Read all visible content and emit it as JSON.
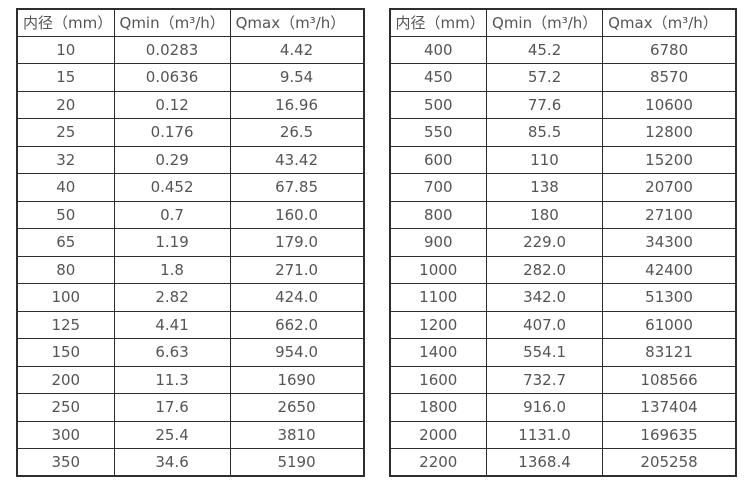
{
  "colors": {
    "background": "#ffffff",
    "text": "#555555",
    "border": "#2e2e2e"
  },
  "table_left": {
    "headers": [
      "内径（mm）",
      "Qmin（m³/h）",
      "Qmax（m³/h）"
    ],
    "rows": [
      [
        "10",
        "0.0283",
        "4.42"
      ],
      [
        "15",
        "0.0636",
        "9.54"
      ],
      [
        "20",
        "0.12",
        "16.96"
      ],
      [
        "25",
        "0.176",
        "26.5"
      ],
      [
        "32",
        "0.29",
        "43.42"
      ],
      [
        "40",
        "0.452",
        "67.85"
      ],
      [
        "50",
        "0.7",
        "160.0"
      ],
      [
        "65",
        "1.19",
        "179.0"
      ],
      [
        "80",
        "1.8",
        "271.0"
      ],
      [
        "100",
        "2.82",
        "424.0"
      ],
      [
        "125",
        "4.41",
        "662.0"
      ],
      [
        "150",
        "6.63",
        "954.0"
      ],
      [
        "200",
        "11.3",
        "1690"
      ],
      [
        "250",
        "17.6",
        "2650"
      ],
      [
        "300",
        "25.4",
        "3810"
      ],
      [
        "350",
        "34.6",
        "5190"
      ]
    ]
  },
  "table_right": {
    "headers": [
      "内径（mm）",
      "Qmin（m³/h）",
      "Qmax（m³/h）"
    ],
    "rows": [
      [
        "400",
        "45.2",
        "6780"
      ],
      [
        "450",
        "57.2",
        "8570"
      ],
      [
        "500",
        "77.6",
        "10600"
      ],
      [
        "550",
        "85.5",
        "12800"
      ],
      [
        "600",
        "110",
        "15200"
      ],
      [
        "700",
        "138",
        "20700"
      ],
      [
        "800",
        "180",
        "27100"
      ],
      [
        "900",
        "229.0",
        "34300"
      ],
      [
        "1000",
        "282.0",
        "42400"
      ],
      [
        "1100",
        "342.0",
        "51300"
      ],
      [
        "1200",
        "407.0",
        "61000"
      ],
      [
        "1400",
        "554.1",
        "83121"
      ],
      [
        "1600",
        "732.7",
        "108566"
      ],
      [
        "1800",
        "916.0",
        "137404"
      ],
      [
        "2000",
        "1131.0",
        "169635"
      ],
      [
        "2200",
        "1368.4",
        "205258"
      ]
    ]
  }
}
